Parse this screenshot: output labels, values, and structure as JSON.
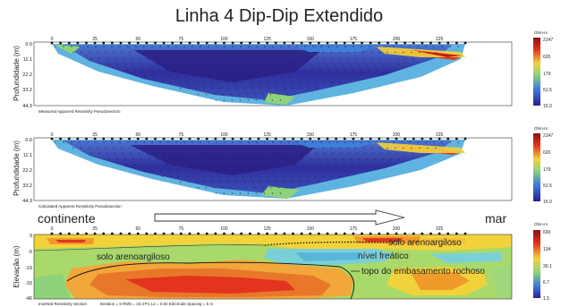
{
  "figure": {
    "title": "Linha 4 Dip-Dip Extendido",
    "x_ticks": [
      "0",
      "25",
      "50",
      "75",
      "100",
      "125",
      "150",
      "175",
      "200",
      "225"
    ],
    "panels": [
      {
        "id": "measured",
        "caption": "Measured Apparent Resistivity Pseudosection",
        "ylabel": "Profundidade (m)",
        "y_ticks": [
          "0.0",
          "11.1",
          "22.2",
          "33.2",
          "44.3"
        ],
        "colorbar_title": "Ohm-m",
        "colorbar_ticks": [
          "2147",
          "620",
          "179",
          "51.5",
          "15.0"
        ]
      },
      {
        "id": "calculated",
        "caption": "Calculated Apparent Resistivity Pseudosection",
        "ylabel": "Profundidade (m)",
        "y_ticks": [
          "0.0",
          "11.1",
          "22.2",
          "33.2",
          "44.3"
        ],
        "colorbar_title": "Ohm-m",
        "colorbar_ticks": [
          "2147",
          "620",
          "179",
          "51.5",
          "15.0"
        ]
      },
      {
        "id": "inverted",
        "caption": "Inverted Resistivity Section",
        "stats": "Iteration = 5   RMS = 23.37%   L2 = 0.92   Electrode Spacing = 5 m",
        "ylabel": "Elevação (m)",
        "y_ticks": [
          "9",
          "-5",
          "-19",
          "-33",
          "-46"
        ],
        "colorbar_title": "Ohm-m",
        "colorbar_ticks": [
          "600",
          "134",
          "30.1",
          "6.7",
          "1.5"
        ]
      }
    ],
    "annotations": {
      "left_label": "continente",
      "right_label": "mar",
      "solo_left": "solo arenoargiloso",
      "solo_right": "solo arenoargiloso",
      "nivel": "nível freático",
      "topo": "topo do embasamento rochoso"
    },
    "colors": {
      "low": "#2b1f8f",
      "mid_low": "#3d7fd9",
      "mid": "#8fd27a",
      "mid_high": "#f2d23b",
      "high": "#e2341f",
      "very_high": "#8c1010"
    }
  }
}
